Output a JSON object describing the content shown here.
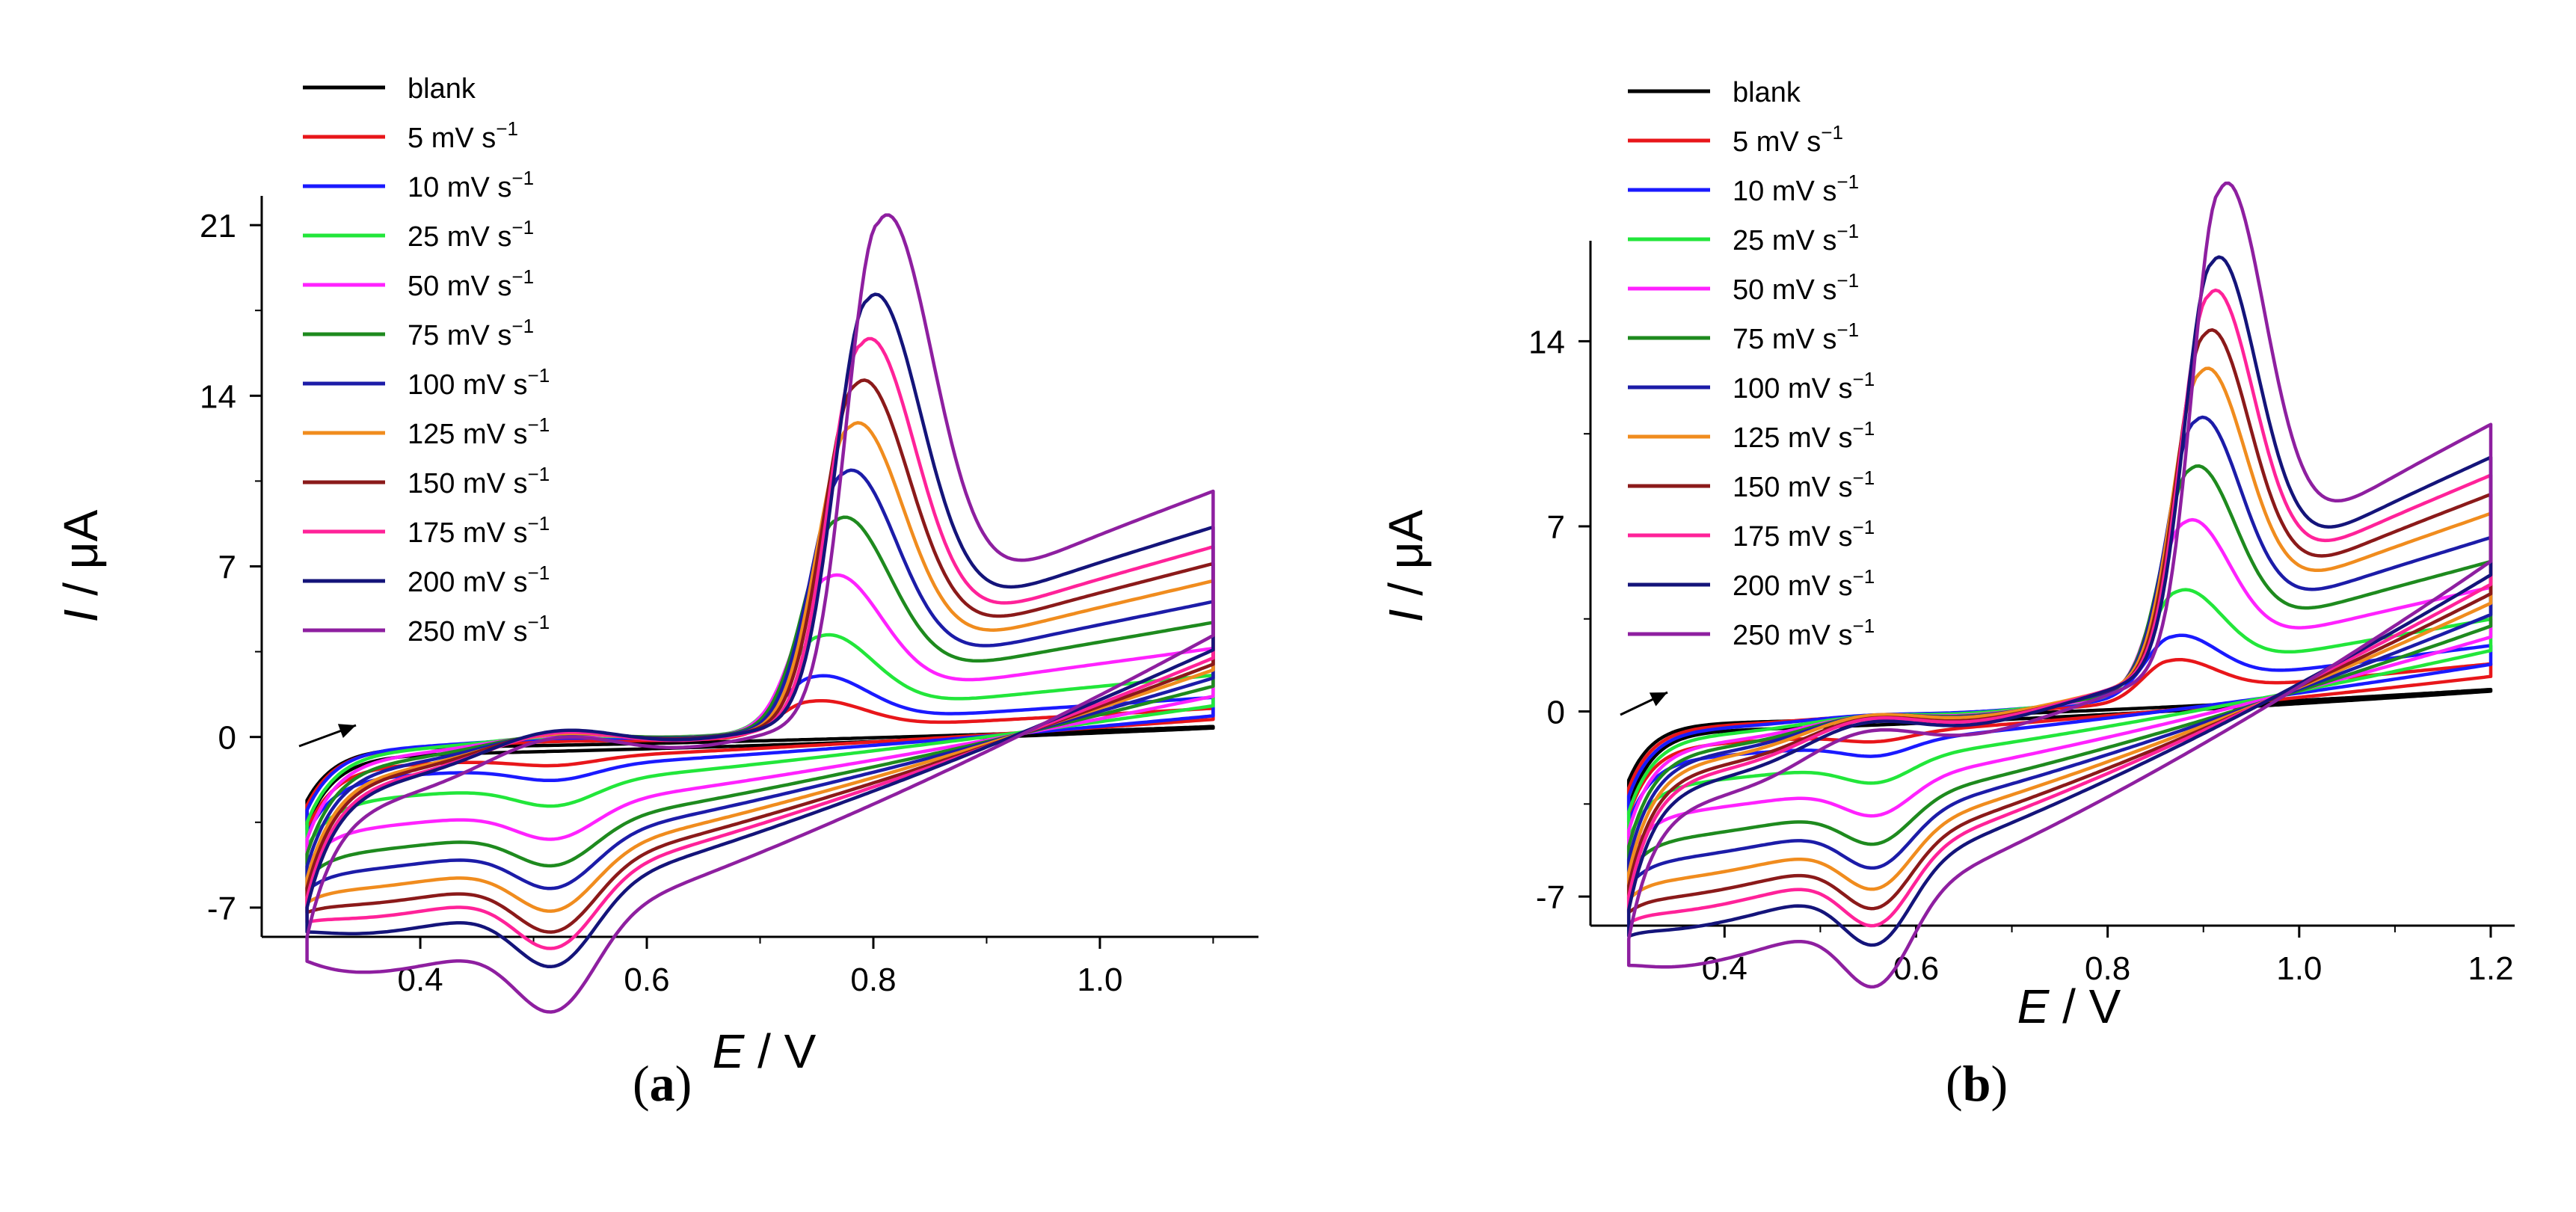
{
  "figure": {
    "panel_labels": [
      {
        "open": "(",
        "letter": "a",
        "close": ")"
      },
      {
        "open": "(",
        "letter": "b",
        "close": ")"
      }
    ]
  },
  "chart_data": [
    {
      "type": "line",
      "title": "",
      "xlabel": {
        "symbol": "E",
        "unit": " / V"
      },
      "ylabel": {
        "symbol": "I",
        "unit": " / μA"
      },
      "xlim": [
        0.26,
        1.14
      ],
      "ylim": [
        -8.2,
        22.2
      ],
      "xticks": [
        0.4,
        0.6,
        0.8,
        1.0
      ],
      "xtick_labels": [
        "0.4",
        "0.6",
        "0.8",
        "1.0"
      ],
      "yticks": [
        -7,
        0,
        7,
        14,
        21
      ],
      "ytick_labels": [
        "-7",
        "0",
        "7",
        "14",
        "21"
      ],
      "grid": false,
      "legend_position": "top-left",
      "unit_suffix": " mV s",
      "unit_exponent": "−1",
      "scan": {
        "E_start": 0.3,
        "E_end": 1.1,
        "E_peak_min": 0.74,
        "E_peak_max": 0.805,
        "E_cathodic": 0.52
      },
      "annotation": "scan direction arrow",
      "series": [
        {
          "name": "blank",
          "unit": false,
          "color": "#000000",
          "peak": 0,
          "cat": 0.0,
          "gap": 0.15,
          "start": -0.6,
          "end": 0.4
        },
        {
          "name": "5",
          "unit": true,
          "color": "#e8161a",
          "peak": 1.4,
          "cat": 0.3,
          "gap": 0.35,
          "start": -0.8,
          "end": 0.8
        },
        {
          "name": "10",
          "unit": true,
          "color": "#1a1aff",
          "peak": 2.3,
          "cat": 0.55,
          "gap": 0.6,
          "start": -1.0,
          "end": 1.0
        },
        {
          "name": "25",
          "unit": true,
          "color": "#22e63a",
          "peak": 3.8,
          "cat": 0.9,
          "gap": 1.0,
          "start": -1.5,
          "end": 1.5
        },
        {
          "name": "50",
          "unit": true,
          "color": "#ff22ff",
          "peak": 6.1,
          "cat": 1.3,
          "gap": 1.5,
          "start": -2.2,
          "end": 2.0
        },
        {
          "name": "75",
          "unit": true,
          "color": "#1e8a1e",
          "peak": 8.3,
          "cat": 1.6,
          "gap": 1.9,
          "start": -2.8,
          "end": 2.5
        },
        {
          "name": "100",
          "unit": true,
          "color": "#1c1ca8",
          "peak": 10.1,
          "cat": 1.9,
          "gap": 2.2,
          "start": -3.3,
          "end": 2.9
        },
        {
          "name": "125",
          "unit": true,
          "color": "#f08c1e",
          "peak": 11.9,
          "cat": 2.2,
          "gap": 2.5,
          "start": -3.8,
          "end": 3.3
        },
        {
          "name": "150",
          "unit": true,
          "color": "#8b1a1a",
          "peak": 13.5,
          "cat": 2.5,
          "gap": 2.8,
          "start": -4.2,
          "end": 3.6
        },
        {
          "name": "175",
          "unit": true,
          "color": "#ff2299",
          "peak": 15.1,
          "cat": 2.7,
          "gap": 3.0,
          "start": -4.6,
          "end": 3.9
        },
        {
          "name": "200",
          "unit": true,
          "color": "#14147a",
          "peak": 16.7,
          "cat": 2.9,
          "gap": 3.3,
          "start": -5.0,
          "end": 4.3
        },
        {
          "name": "250",
          "unit": true,
          "color": "#8e1fa0",
          "peak": 19.8,
          "cat": 3.4,
          "gap": 3.8,
          "start": -6.2,
          "end": 5.0
        }
      ]
    },
    {
      "type": "line",
      "title": "",
      "xlabel": {
        "symbol": "E",
        "unit": " / V"
      },
      "ylabel": {
        "symbol": "I",
        "unit": " / μA"
      },
      "xlim": [
        0.26,
        1.225
      ],
      "ylim": [
        -8.1,
        17.8
      ],
      "xticks": [
        0.4,
        0.6,
        0.8,
        1.0,
        1.2
      ],
      "xtick_labels": [
        "0.4",
        "0.6",
        "0.8",
        "1.0",
        "1.2"
      ],
      "yticks": [
        -7,
        0,
        7,
        14
      ],
      "ytick_labels": [
        "-7",
        "0",
        "7",
        "14"
      ],
      "grid": false,
      "legend_position": "top-left",
      "unit_suffix": " mV s",
      "unit_exponent": "−1",
      "scan": {
        "E_start": 0.3,
        "E_end": 1.2,
        "E_peak_min": 0.86,
        "E_peak_max": 0.925,
        "E_cathodic": 0.56
      },
      "annotation": "scan direction arrow",
      "series": [
        {
          "name": "blank",
          "unit": false,
          "color": "#000000",
          "peak": 0,
          "cat": 0.0,
          "gap": 0.15,
          "start": -0.6,
          "end": 0.8
        },
        {
          "name": "5",
          "unit": true,
          "color": "#e8161a",
          "peak": 1.5,
          "cat": 0.3,
          "gap": 0.35,
          "start": -0.9,
          "end": 1.4
        },
        {
          "name": "10",
          "unit": true,
          "color": "#1a1aff",
          "peak": 2.2,
          "cat": 0.5,
          "gap": 0.55,
          "start": -1.2,
          "end": 1.9
        },
        {
          "name": "25",
          "unit": true,
          "color": "#22e63a",
          "peak": 3.7,
          "cat": 0.8,
          "gap": 0.9,
          "start": -1.8,
          "end": 2.5
        },
        {
          "name": "50",
          "unit": true,
          "color": "#ff22ff",
          "peak": 6.1,
          "cat": 1.2,
          "gap": 1.3,
          "start": -2.5,
          "end": 3.1
        },
        {
          "name": "75",
          "unit": true,
          "color": "#1e8a1e",
          "peak": 7.9,
          "cat": 1.5,
          "gap": 1.7,
          "start": -3.1,
          "end": 3.6
        },
        {
          "name": "100",
          "unit": true,
          "color": "#1c1ca8",
          "peak": 9.5,
          "cat": 1.8,
          "gap": 2.0,
          "start": -3.6,
          "end": 4.1
        },
        {
          "name": "125",
          "unit": true,
          "color": "#f08c1e",
          "peak": 11.1,
          "cat": 2.0,
          "gap": 2.3,
          "start": -4.1,
          "end": 4.6
        },
        {
          "name": "150",
          "unit": true,
          "color": "#8b1a1a",
          "peak": 12.4,
          "cat": 2.2,
          "gap": 2.5,
          "start": -4.6,
          "end": 5.0
        },
        {
          "name": "175",
          "unit": true,
          "color": "#ff2299",
          "peak": 13.7,
          "cat": 2.4,
          "gap": 2.7,
          "start": -5.0,
          "end": 5.4
        },
        {
          "name": "200",
          "unit": true,
          "color": "#14147a",
          "peak": 14.8,
          "cat": 2.6,
          "gap": 2.9,
          "start": -5.5,
          "end": 5.8
        },
        {
          "name": "250",
          "unit": true,
          "color": "#8e1fa0",
          "peak": 17.4,
          "cat": 3.0,
          "gap": 3.3,
          "start": -6.6,
          "end": 6.4
        }
      ]
    }
  ]
}
